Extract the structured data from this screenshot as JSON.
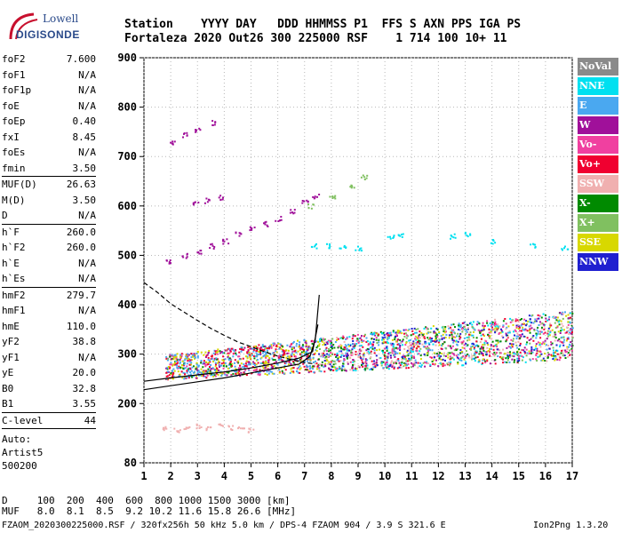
{
  "logo": {
    "line1": "Lowell",
    "line2": "DIGISONDE"
  },
  "header": {
    "line1": "Station    YYYY DAY   DDD HHMMSS P1  FFS S AXN PPS IGA PS",
    "line2": "Fortaleza 2020 Out26 300 225000 RSF    1 714 100 10+ 11"
  },
  "params_group1": [
    {
      "name": "foF2",
      "value": "7.600"
    },
    {
      "name": "foF1",
      "value": "N/A"
    },
    {
      "name": "foF1p",
      "value": "N/A"
    },
    {
      "name": "foE",
      "value": "N/A"
    },
    {
      "name": "foEp",
      "value": "0.40"
    },
    {
      "name": "fxI",
      "value": "8.45"
    },
    {
      "name": "foEs",
      "value": "N/A"
    },
    {
      "name": "fmin",
      "value": "3.50"
    }
  ],
  "params_group2": [
    {
      "name": "MUF(D)",
      "value": "26.63"
    },
    {
      "name": "M(D)",
      "value": "3.50"
    },
    {
      "name": "D",
      "value": "N/A"
    }
  ],
  "params_group3": [
    {
      "name": "h`F",
      "value": "260.0"
    },
    {
      "name": "h`F2",
      "value": "260.0"
    },
    {
      "name": "h`E",
      "value": "N/A"
    },
    {
      "name": "h`Es",
      "value": "N/A"
    }
  ],
  "params_group4": [
    {
      "name": "hmF2",
      "value": "279.7"
    },
    {
      "name": "hmF1",
      "value": "N/A"
    },
    {
      "name": "hmE",
      "value": "110.0"
    },
    {
      "name": "yF2",
      "value": "38.8"
    },
    {
      "name": "yF1",
      "value": "N/A"
    },
    {
      "name": "yE",
      "value": "20.0"
    },
    {
      "name": "B0",
      "value": "32.8"
    },
    {
      "name": "B1",
      "value": "3.55"
    }
  ],
  "clevel": {
    "name": "C-level",
    "value": "44"
  },
  "auto": {
    "line1": "Auto:",
    "line2": "Artist5",
    "line3": "500200"
  },
  "muf_table": {
    "line1": "D     100  200  400  600  800 1000 1500 3000 [km]",
    "line2": "MUF   8.0  8.1  8.5  9.2 10.2 11.6 15.8 26.6 [MHz]"
  },
  "footer": {
    "file": "FZAOM_2020300225000.RSF / 320fx256h 50 kHz 5.0 km / DPS-4 FZAOM 904 / 3.9 S 321.6 E",
    "version": "Ion2Png 1.3.20"
  },
  "legend": [
    {
      "label": "NoVal",
      "bg": "#8a8a8a",
      "fg": "#ffffff"
    },
    {
      "label": "NNE",
      "bg": "#00e0f0",
      "fg": "#ffffff"
    },
    {
      "label": "E",
      "bg": "#4aa8f0",
      "fg": "#ffffff"
    },
    {
      "label": "W",
      "bg": "#a0109a",
      "fg": "#ffffff"
    },
    {
      "label": "Vo-",
      "bg": "#f040a0",
      "fg": "#ffffff"
    },
    {
      "label": "Vo+",
      "bg": "#f00030",
      "fg": "#ffffff"
    },
    {
      "label": "SSW",
      "bg": "#f0b0b0",
      "fg": "#ffffff"
    },
    {
      "label": "X-",
      "bg": "#008a00",
      "fg": "#ffffff"
    },
    {
      "label": "X+",
      "bg": "#80c060",
      "fg": "#ffffff"
    },
    {
      "label": "SSE",
      "bg": "#d8d800",
      "fg": "#ffffff"
    },
    {
      "label": "NNW",
      "bg": "#2020d0",
      "fg": "#ffffff"
    }
  ],
  "chart_data": {
    "type": "scatter",
    "xlim": [
      1,
      17
    ],
    "ylim": [
      80,
      900
    ],
    "x_ticks": [
      1,
      2,
      3,
      4,
      5,
      6,
      7,
      8,
      9,
      10,
      11,
      12,
      13,
      14,
      15,
      16,
      17
    ],
    "y_ticks": [
      80,
      200,
      300,
      400,
      500,
      600,
      700,
      800,
      900
    ],
    "grid": true,
    "legend_position": "right",
    "echo_traces": [
      {
        "name": "SSW",
        "color": "#f0b0b0",
        "points": [
          [
            1.8,
            150
          ],
          [
            2.2,
            148
          ],
          [
            2.6,
            152
          ],
          [
            3.0,
            155
          ],
          [
            3.4,
            150
          ],
          [
            3.8,
            158
          ],
          [
            4.2,
            152
          ],
          [
            4.6,
            150
          ],
          [
            5.0,
            148
          ]
        ]
      },
      {
        "name": "W",
        "color": "#a0109a",
        "points": [
          [
            1.9,
            490
          ],
          [
            2.5,
            500
          ],
          [
            3.0,
            510
          ],
          [
            3.5,
            520
          ],
          [
            4.0,
            530
          ],
          [
            4.5,
            545
          ],
          [
            5.0,
            555
          ],
          [
            5.5,
            565
          ],
          [
            6.0,
            575
          ],
          [
            6.5,
            590
          ],
          [
            7.0,
            610
          ],
          [
            7.4,
            620
          ]
        ]
      },
      {
        "name": "W",
        "color": "#a0109a",
        "points": [
          [
            2.0,
            730
          ],
          [
            2.5,
            745
          ],
          [
            3.0,
            755
          ],
          [
            3.6,
            770
          ]
        ]
      },
      {
        "name": "W",
        "color": "#a0109a",
        "points": [
          [
            2.9,
            605
          ],
          [
            3.3,
            612
          ],
          [
            3.8,
            618
          ]
        ]
      },
      {
        "name": "NNE",
        "color": "#00e0f0",
        "points": [
          [
            7.3,
            520
          ],
          [
            7.8,
            520
          ],
          [
            8.4,
            520
          ],
          [
            9.0,
            515
          ],
          [
            10.2,
            540
          ],
          [
            10.6,
            540
          ]
        ]
      },
      {
        "name": "X+",
        "color": "#80c060",
        "points": [
          [
            7.2,
            600
          ],
          [
            8.0,
            620
          ],
          [
            8.8,
            640
          ],
          [
            9.2,
            660
          ]
        ]
      },
      {
        "name": "NNE",
        "color": "#00e0f0",
        "points": [
          [
            12.5,
            540
          ],
          [
            13.1,
            545
          ],
          [
            14.0,
            530
          ],
          [
            15.5,
            520
          ],
          [
            16.7,
            515
          ]
        ]
      }
    ],
    "echo_band": {
      "x_start": 1.8,
      "x_end": 17.0,
      "low_start": 250,
      "low_end": 290,
      "high_start": 300,
      "high_end": 390
    },
    "profile_curves": [
      {
        "name": "profile-dashed",
        "style": "dashed",
        "points": [
          [
            1.0,
            445
          ],
          [
            1.5,
            425
          ],
          [
            2.0,
            402
          ],
          [
            2.5,
            385
          ],
          [
            3.0,
            368
          ],
          [
            3.5,
            352
          ],
          [
            4.0,
            338
          ],
          [
            4.5,
            325
          ],
          [
            5.0,
            315
          ],
          [
            5.5,
            305
          ],
          [
            6.0,
            296
          ],
          [
            6.5,
            289
          ],
          [
            7.0,
            283
          ],
          [
            7.4,
            280
          ]
        ]
      },
      {
        "name": "profile-solid",
        "style": "solid",
        "points": [
          [
            1.0,
            228
          ],
          [
            2.0,
            236
          ],
          [
            3.0,
            244
          ],
          [
            4.0,
            252
          ],
          [
            5.0,
            262
          ],
          [
            6.0,
            272
          ],
          [
            6.8,
            280
          ],
          [
            7.2,
            295
          ],
          [
            7.4,
            330
          ],
          [
            7.55,
            420
          ]
        ]
      },
      {
        "name": "profile-solid-2",
        "style": "solid",
        "points": [
          [
            1.0,
            245
          ],
          [
            2.0,
            252
          ],
          [
            3.0,
            258
          ],
          [
            4.0,
            264
          ],
          [
            5.0,
            272
          ],
          [
            6.0,
            282
          ],
          [
            6.8,
            292
          ],
          [
            7.3,
            305
          ],
          [
            7.5,
            360
          ]
        ]
      }
    ]
  }
}
